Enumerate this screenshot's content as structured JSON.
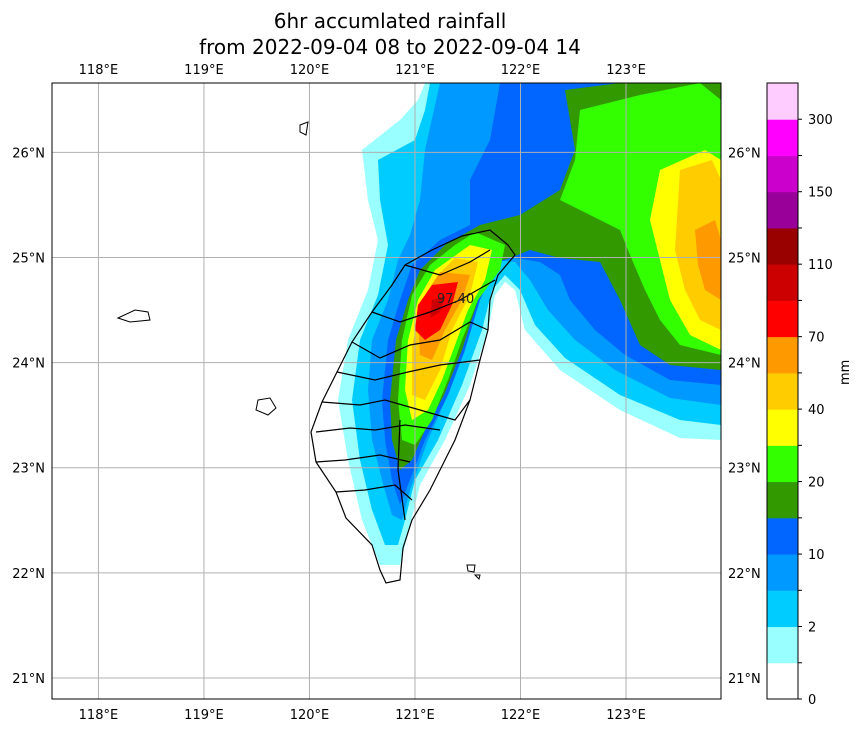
{
  "title": {
    "line1": "6hr accumlated rainfall",
    "line2": "from 2022-09-04 08 to 2022-09-04 14"
  },
  "map": {
    "lon_range": [
      117.56,
      123.9
    ],
    "lat_range": [
      20.8,
      26.66
    ],
    "lon_ticks": [
      {
        "value": 118,
        "label": "118°E"
      },
      {
        "value": 119,
        "label": "119°E"
      },
      {
        "value": 120,
        "label": "120°E"
      },
      {
        "value": 121,
        "label": "121°E"
      },
      {
        "value": 122,
        "label": "122°E"
      },
      {
        "value": 123,
        "label": "123°E"
      }
    ],
    "lat_ticks": [
      {
        "value": 26,
        "label": "26°N"
      },
      {
        "value": 25,
        "label": "25°N"
      },
      {
        "value": 24,
        "label": "24°N"
      },
      {
        "value": 23,
        "label": "23°N"
      },
      {
        "value": 22,
        "label": "22°N"
      },
      {
        "value": 21,
        "label": "21°N"
      }
    ],
    "max_label": "97.40",
    "gridlines": true
  },
  "colorbar": {
    "unit": "mm",
    "colors": [
      "#ffffff",
      "#99ffff",
      "#00ccff",
      "#0099ff",
      "#0066ff",
      "#339900",
      "#33ff00",
      "#ffff00",
      "#ffcc00",
      "#ff9900",
      "#ff0000",
      "#cc0000",
      "#990000",
      "#990099",
      "#cc00cc",
      "#ff00ff",
      "#ffccff"
    ],
    "labels": [
      "0",
      "2",
      "10",
      "20",
      "40",
      "70",
      "110",
      "150",
      "300"
    ]
  }
}
